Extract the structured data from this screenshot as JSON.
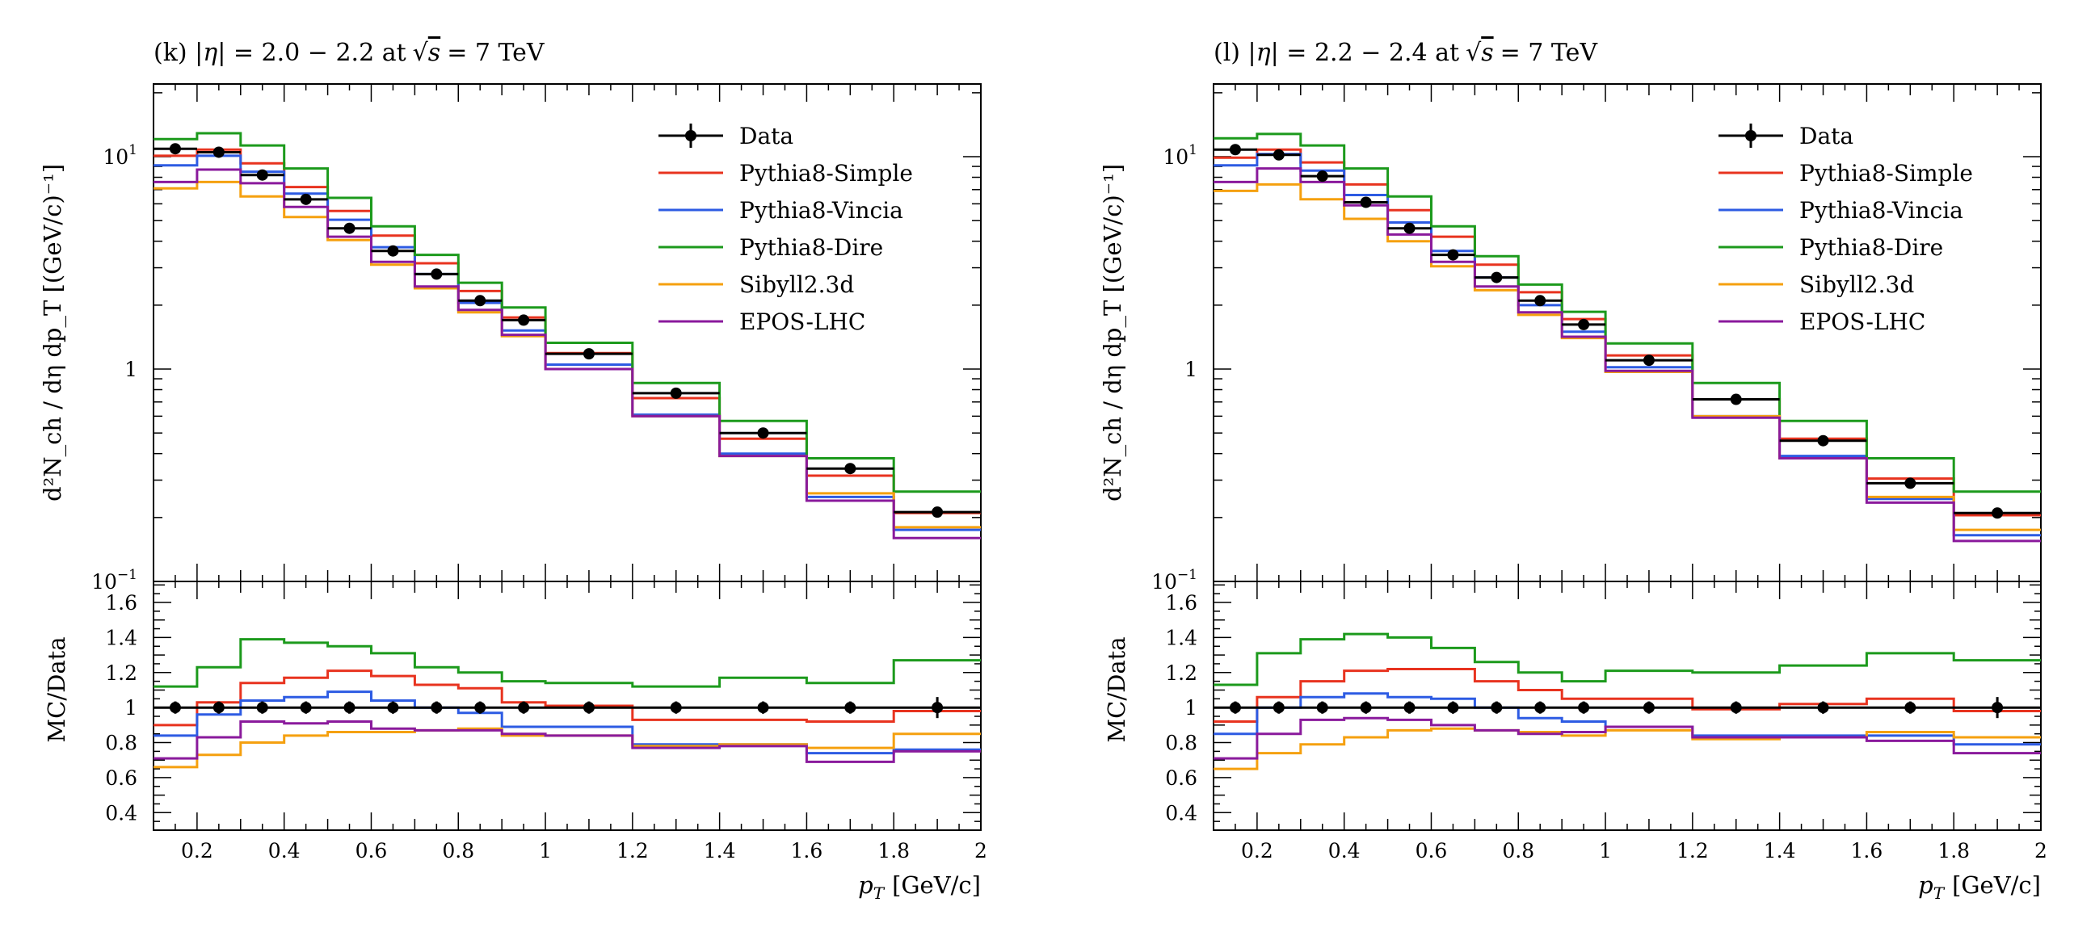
{
  "figure": {
    "series_styles": [
      {
        "name": "Data",
        "color": "#000000"
      },
      {
        "name": "Pythia8-Simple",
        "color": "#e8331f"
      },
      {
        "name": "Pythia8-Vincia",
        "color": "#2d5be3"
      },
      {
        "name": "Pythia8-Dire",
        "color": "#1c9a1c"
      },
      {
        "name": "Sibyll2.3d",
        "color": "#f5a00f"
      },
      {
        "name": "EPOS-LHC",
        "color": "#8a1a9c"
      }
    ]
  },
  "chart_data": [
    {
      "type": "line",
      "panel_id": "k",
      "title": "(k) |η| = 2.0 − 2.2 at √s = 7 TeV",
      "title_parts": {
        "prefix": "(k) |",
        "eta": "η",
        "range": "| = 2.0 − 2.2 at",
        "sqrt": "√",
        "s": "s",
        "energy": "= 7 TeV"
      },
      "xlabel": "p_T [GeV/c]",
      "xlabel_parts": {
        "p": "p",
        "sub": "T",
        "unit": "[GeV/c]"
      },
      "ylabel": "d²N_ch / dη dp_T [(GeV/c)⁻¹]",
      "ratio_ylabel": "MC/Data",
      "xlim": [
        0.1,
        2.0
      ],
      "ylim": [
        0.1,
        22
      ],
      "ratio_ylim": [
        0.3,
        1.72
      ],
      "yscale": "log",
      "x_ticks": [
        "0.2",
        "0.4",
        "0.6",
        "0.8",
        "1",
        "1.2",
        "1.4",
        "1.6",
        "1.8",
        "2"
      ],
      "y_ticks": [
        {
          "value": 10,
          "base": "10",
          "exp": "1"
        },
        {
          "value": 1,
          "base": "1",
          "exp": ""
        },
        {
          "value": 0.1,
          "base": "10",
          "exp": "−1"
        }
      ],
      "ratio_ticks": [
        "0.4",
        "0.6",
        "0.8",
        "1",
        "1.2",
        "1.4",
        "1.6"
      ],
      "legend_position": "top-right",
      "bin_edges": [
        0.1,
        0.2,
        0.3,
        0.4,
        0.5,
        0.6,
        0.7,
        0.8,
        0.9,
        1.0,
        1.2,
        1.4,
        1.6,
        1.8,
        2.0
      ],
      "data": {
        "name": "Data",
        "x": [
          0.15,
          0.25,
          0.35,
          0.45,
          0.55,
          0.65,
          0.75,
          0.85,
          0.95,
          1.1,
          1.3,
          1.5,
          1.7,
          1.9
        ],
        "y": [
          10.9,
          10.5,
          8.2,
          6.3,
          4.6,
          3.6,
          2.8,
          2.1,
          1.7,
          1.18,
          0.77,
          0.5,
          0.34,
          0.212
        ],
        "ratio_err": [
          0.035,
          0.035,
          0.035,
          0.035,
          0.035,
          0.035,
          0.035,
          0.035,
          0.035,
          0.035,
          0.035,
          0.035,
          0.035,
          0.06
        ]
      },
      "series": [
        {
          "name": "Pythia8-Simple",
          "values": [
            10.1,
            10.8,
            9.3,
            7.2,
            5.55,
            4.25,
            3.15,
            2.33,
            1.75,
            1.19,
            0.73,
            0.47,
            0.315,
            0.21
          ],
          "ratio": [
            0.9,
            1.03,
            1.14,
            1.17,
            1.21,
            1.18,
            1.13,
            1.11,
            1.03,
            1.01,
            0.93,
            0.93,
            0.92,
            0.98
          ]
        },
        {
          "name": "Pythia8-Vincia",
          "values": [
            9.1,
            10.1,
            8.5,
            6.7,
            5.05,
            3.75,
            2.8,
            2.05,
            1.52,
            1.05,
            0.61,
            0.4,
            0.25,
            0.175
          ],
          "ratio": [
            0.84,
            0.96,
            1.04,
            1.06,
            1.09,
            1.04,
            1.0,
            0.97,
            0.89,
            0.89,
            0.79,
            0.79,
            0.74,
            0.76
          ]
        },
        {
          "name": "Pythia8-Dire",
          "values": [
            12.1,
            12.9,
            11.3,
            8.8,
            6.4,
            4.7,
            3.45,
            2.55,
            1.95,
            1.33,
            0.86,
            0.57,
            0.38,
            0.265
          ],
          "ratio": [
            1.12,
            1.23,
            1.39,
            1.37,
            1.35,
            1.31,
            1.23,
            1.2,
            1.15,
            1.14,
            1.12,
            1.17,
            1.14,
            1.27
          ]
        },
        {
          "name": "Sibyll2.3d",
          "values": [
            7.1,
            7.6,
            6.5,
            5.2,
            4.05,
            3.1,
            2.4,
            1.85,
            1.43,
            1.0,
            0.6,
            0.39,
            0.26,
            0.18
          ],
          "ratio": [
            0.66,
            0.73,
            0.8,
            0.84,
            0.86,
            0.86,
            0.87,
            0.88,
            0.84,
            0.84,
            0.78,
            0.79,
            0.77,
            0.85
          ]
        },
        {
          "name": "EPOS-LHC",
          "values": [
            7.6,
            8.7,
            7.5,
            5.8,
            4.2,
            3.2,
            2.45,
            1.9,
            1.45,
            1.0,
            0.6,
            0.39,
            0.24,
            0.16
          ],
          "ratio": [
            0.71,
            0.83,
            0.92,
            0.91,
            0.92,
            0.88,
            0.87,
            0.87,
            0.85,
            0.84,
            0.77,
            0.78,
            0.69,
            0.75
          ]
        }
      ]
    },
    {
      "type": "line",
      "panel_id": "l",
      "title": "(l) |η| = 2.2 − 2.4 at √s = 7 TeV",
      "title_parts": {
        "prefix": "(l) |",
        "eta": "η",
        "range": "| = 2.2 − 2.4 at",
        "sqrt": "√",
        "s": "s",
        "energy": "= 7 TeV"
      },
      "xlabel": "p_T [GeV/c]",
      "xlabel_parts": {
        "p": "p",
        "sub": "T",
        "unit": "[GeV/c]"
      },
      "ylabel": "d²N_ch / dη dp_T [(GeV/c)⁻¹]",
      "ratio_ylabel": "MC/Data",
      "xlim": [
        0.1,
        2.0
      ],
      "ylim": [
        0.1,
        22
      ],
      "ratio_ylim": [
        0.3,
        1.72
      ],
      "yscale": "log",
      "x_ticks": [
        "0.2",
        "0.4",
        "0.6",
        "0.8",
        "1",
        "1.2",
        "1.4",
        "1.6",
        "1.8",
        "2"
      ],
      "y_ticks": [
        {
          "value": 10,
          "base": "10",
          "exp": "1"
        },
        {
          "value": 1,
          "base": "1",
          "exp": ""
        },
        {
          "value": 0.1,
          "base": "10",
          "exp": "−1"
        }
      ],
      "ratio_ticks": [
        "0.4",
        "0.6",
        "0.8",
        "1",
        "1.2",
        "1.4",
        "1.6"
      ],
      "legend_position": "top-right",
      "bin_edges": [
        0.1,
        0.2,
        0.3,
        0.4,
        0.5,
        0.6,
        0.7,
        0.8,
        0.9,
        1.0,
        1.2,
        1.4,
        1.6,
        1.8,
        2.0
      ],
      "data": {
        "name": "Data",
        "x": [
          0.15,
          0.25,
          0.35,
          0.45,
          0.55,
          0.65,
          0.75,
          0.85,
          0.95,
          1.1,
          1.3,
          1.5,
          1.7,
          1.9
        ],
        "y": [
          10.8,
          10.2,
          8.1,
          6.1,
          4.6,
          3.45,
          2.7,
          2.1,
          1.62,
          1.1,
          0.72,
          0.46,
          0.29,
          0.21
        ],
        "ratio_err": [
          0.035,
          0.035,
          0.035,
          0.035,
          0.035,
          0.035,
          0.035,
          0.035,
          0.035,
          0.035,
          0.035,
          0.035,
          0.035,
          0.06
        ]
      },
      "series": [
        {
          "name": "Pythia8-Simple",
          "values": [
            9.9,
            10.8,
            9.4,
            7.4,
            5.6,
            4.2,
            3.1,
            2.3,
            1.72,
            1.16,
            0.72,
            0.47,
            0.305,
            0.205
          ],
          "ratio": [
            0.92,
            1.06,
            1.15,
            1.21,
            1.22,
            1.22,
            1.15,
            1.1,
            1.05,
            1.05,
            0.99,
            1.02,
            1.05,
            0.98
          ]
        },
        {
          "name": "Pythia8-Vincia",
          "values": [
            9.1,
            10.3,
            8.6,
            6.6,
            4.9,
            3.6,
            2.7,
            2.0,
            1.5,
            1.02,
            0.6,
            0.39,
            0.245,
            0.165
          ],
          "ratio": [
            0.85,
            1.0,
            1.06,
            1.08,
            1.06,
            1.05,
            1.0,
            0.94,
            0.92,
            0.89,
            0.84,
            0.84,
            0.84,
            0.79
          ]
        },
        {
          "name": "Pythia8-Dire",
          "values": [
            12.2,
            12.8,
            11.3,
            8.8,
            6.5,
            4.7,
            3.4,
            2.5,
            1.86,
            1.32,
            0.86,
            0.57,
            0.38,
            0.265
          ],
          "ratio": [
            1.13,
            1.31,
            1.39,
            1.42,
            1.4,
            1.34,
            1.26,
            1.2,
            1.15,
            1.21,
            1.2,
            1.24,
            1.31,
            1.27
          ]
        },
        {
          "name": "Sibyll2.3d",
          "values": [
            6.9,
            7.4,
            6.3,
            5.1,
            4.0,
            3.05,
            2.35,
            1.8,
            1.4,
            0.97,
            0.6,
            0.38,
            0.25,
            0.175
          ],
          "ratio": [
            0.65,
            0.74,
            0.79,
            0.83,
            0.87,
            0.88,
            0.87,
            0.86,
            0.84,
            0.87,
            0.82,
            0.83,
            0.86,
            0.83
          ]
        },
        {
          "name": "EPOS-LHC",
          "values": [
            7.6,
            8.8,
            7.6,
            5.9,
            4.3,
            3.2,
            2.45,
            1.85,
            1.42,
            0.98,
            0.59,
            0.38,
            0.235,
            0.155
          ],
          "ratio": [
            0.71,
            0.85,
            0.93,
            0.94,
            0.93,
            0.9,
            0.87,
            0.85,
            0.86,
            0.89,
            0.83,
            0.83,
            0.81,
            0.74
          ]
        }
      ]
    }
  ]
}
